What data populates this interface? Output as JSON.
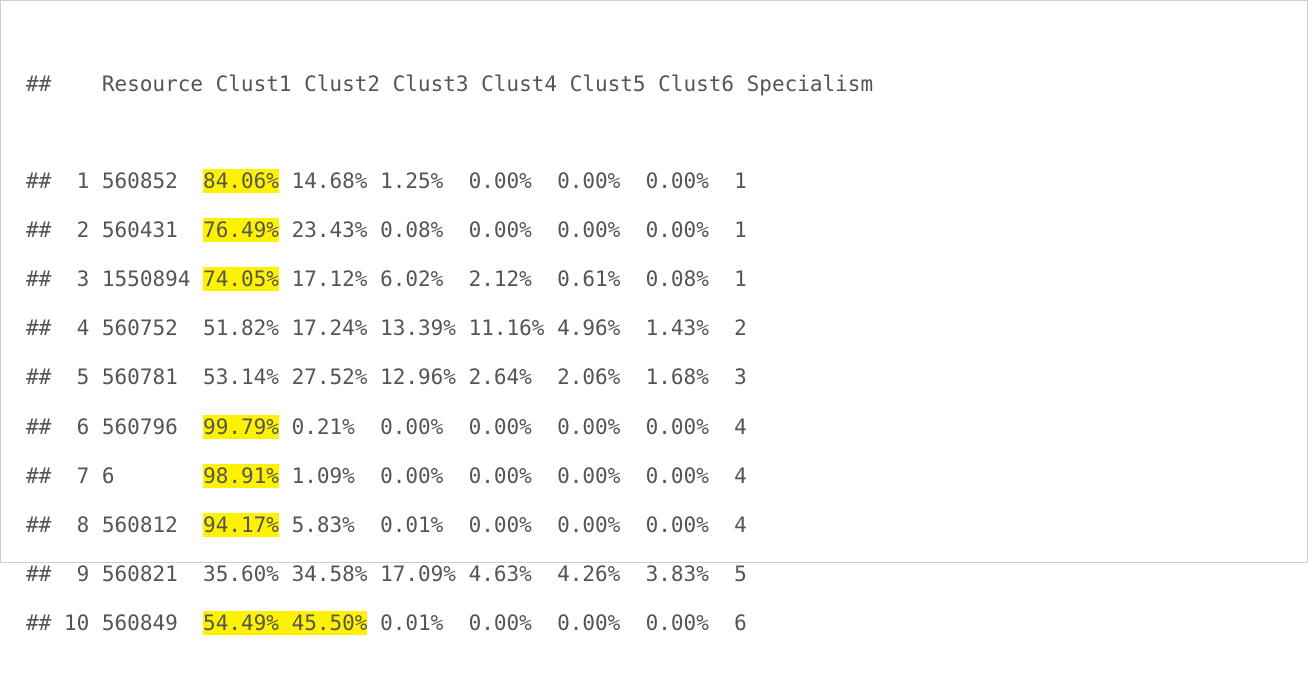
{
  "console": {
    "header": "##    Resource Clust1 Clust2 Clust3 Clust4 Clust5 Clust6 Specialism",
    "rows": [
      {
        "prefix": "##  ",
        "id": "1",
        "resource": "560852",
        "c1": "84.06%",
        "c2": "14.68%",
        "c3": "1.25%",
        "c4": "0.00%",
        "c5": "0.00%",
        "c6": "0.00%",
        "specialism": "1",
        "highlight": [
          "c1"
        ]
      },
      {
        "prefix": "##  ",
        "id": "2",
        "resource": "560431",
        "c1": "76.49%",
        "c2": "23.43%",
        "c3": "0.08%",
        "c4": "0.00%",
        "c5": "0.00%",
        "c6": "0.00%",
        "specialism": "1",
        "highlight": [
          "c1"
        ]
      },
      {
        "prefix": "##  ",
        "id": "3",
        "resource": "1550894",
        "c1": "74.05%",
        "c2": "17.12%",
        "c3": "6.02%",
        "c4": "2.12%",
        "c5": "0.61%",
        "c6": "0.08%",
        "specialism": "1",
        "highlight": [
          "c1"
        ]
      },
      {
        "prefix": "##  ",
        "id": "4",
        "resource": "560752",
        "c1": "51.82%",
        "c2": "17.24%",
        "c3": "13.39%",
        "c4": "11.16%",
        "c5": "4.96%",
        "c6": "1.43%",
        "specialism": "2",
        "highlight": []
      },
      {
        "prefix": "##  ",
        "id": "5",
        "resource": "560781",
        "c1": "53.14%",
        "c2": "27.52%",
        "c3": "12.96%",
        "c4": "2.64%",
        "c5": "2.06%",
        "c6": "1.68%",
        "specialism": "3",
        "highlight": []
      },
      {
        "prefix": "##  ",
        "id": "6",
        "resource": "560796",
        "c1": "99.79%",
        "c2": "0.21%",
        "c3": "0.00%",
        "c4": "0.00%",
        "c5": "0.00%",
        "c6": "0.00%",
        "specialism": "4",
        "highlight": [
          "c1"
        ]
      },
      {
        "prefix": "##  ",
        "id": "7",
        "resource": "6",
        "c1": "98.91%",
        "c2": "1.09%",
        "c3": "0.00%",
        "c4": "0.00%",
        "c5": "0.00%",
        "c6": "0.00%",
        "specialism": "4",
        "highlight": [
          "c1"
        ]
      },
      {
        "prefix": "##  ",
        "id": "8",
        "resource": "560812",
        "c1": "94.17%",
        "c2": "5.83%",
        "c3": "0.01%",
        "c4": "0.00%",
        "c5": "0.00%",
        "c6": "0.00%",
        "specialism": "4",
        "highlight": [
          "c1"
        ]
      },
      {
        "prefix": "##  ",
        "id": "9",
        "resource": "560821",
        "c1": "35.60%",
        "c2": "34.58%",
        "c3": "17.09%",
        "c4": "4.63%",
        "c5": "4.26%",
        "c6": "3.83%",
        "specialism": "5",
        "highlight": []
      },
      {
        "prefix": "## ",
        "id": "10",
        "resource": "560849",
        "c1": "54.49%",
        "c2": "45.50%",
        "c3": "0.01%",
        "c4": "0.00%",
        "c5": "0.00%",
        "c6": "0.00%",
        "specialism": "6",
        "highlight": [
          "c1",
          "c2"
        ]
      }
    ]
  },
  "colors": {
    "highlight": "#fff200",
    "text": "#555555",
    "border": "#cfcfcf"
  }
}
